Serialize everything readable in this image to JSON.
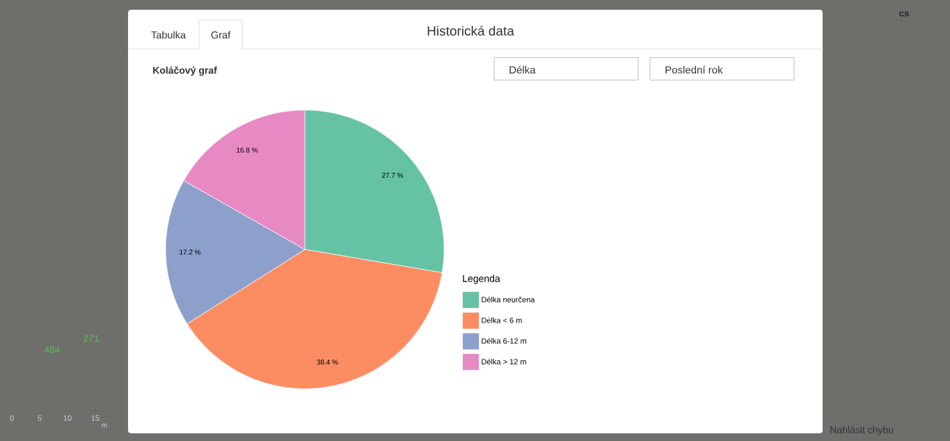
{
  "chart_data": {
    "type": "pie",
    "title": "Historická data",
    "categories": [
      "Délka neurčena",
      "Délka < 6 m",
      "Délka 6-12 m",
      "Délka > 12 m"
    ],
    "values": [
      27.7,
      38.4,
      17.2,
      16.8
    ],
    "value_labels": [
      "27.7 %",
      "38.4 %",
      "17.2 %",
      "16.8 %"
    ],
    "colors": [
      "#66c2a5",
      "#fc8d62",
      "#8da0cb",
      "#e78ac3"
    ],
    "legend": "right",
    "legend_title": "Legenda",
    "annotations": [
      "Tabulka",
      "Graf",
      "Koláčový graf",
      "Délka",
      "Poslední rok",
      "cs",
      "Nahlásit chybu",
      "484",
      "271",
      "0",
      "5",
      "10",
      "15",
      "m"
    ]
  }
}
